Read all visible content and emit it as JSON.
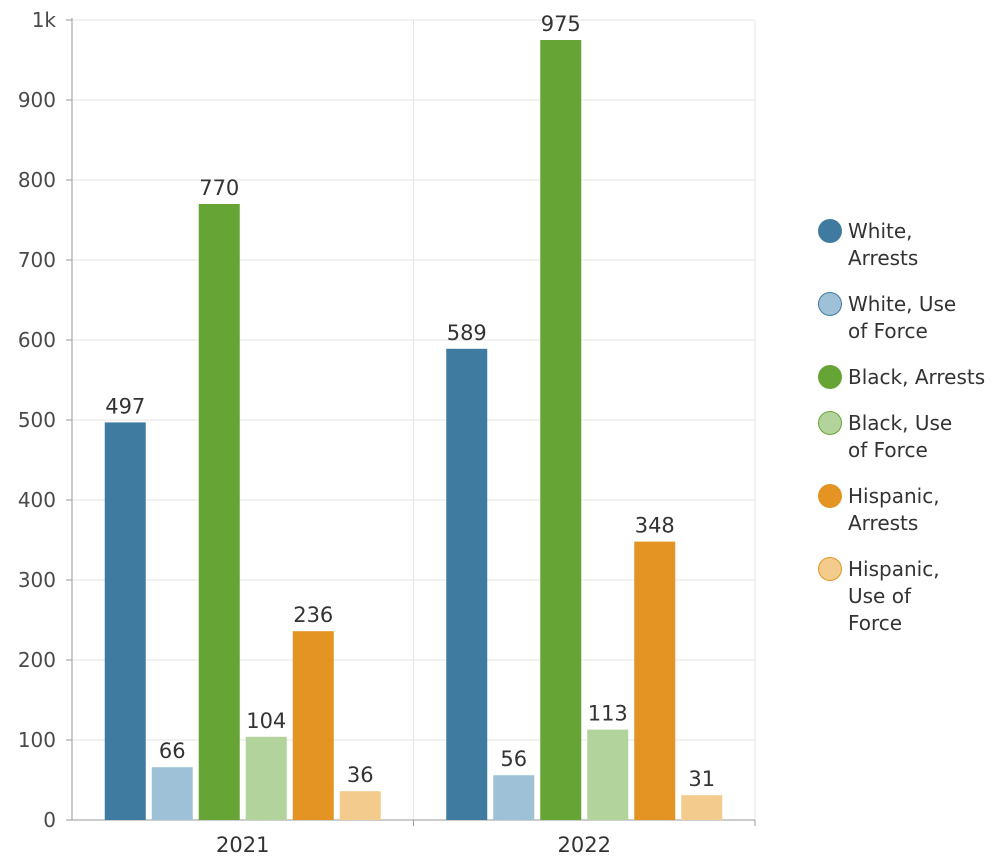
{
  "chart_data": {
    "type": "bar",
    "categories": [
      "2021",
      "2022"
    ],
    "series": [
      {
        "name": "White, Arrests",
        "color": "#3f7ba0",
        "values": [
          497,
          589
        ]
      },
      {
        "name": "White, Use of Force",
        "color": "#9ec1d8",
        "values": [
          66,
          56
        ]
      },
      {
        "name": "Black, Arrests",
        "color": "#66a535",
        "values": [
          770,
          975
        ]
      },
      {
        "name": "Black, Use of Force",
        "color": "#b2d39b",
        "values": [
          104,
          113
        ]
      },
      {
        "name": "Hispanic, Arrests",
        "color": "#e39423",
        "values": [
          236,
          348
        ]
      },
      {
        "name": "Hispanic, Use of Force",
        "color": "#f3cb8c",
        "values": [
          36,
          31
        ]
      }
    ],
    "y_ticks": [
      "0",
      "100",
      "200",
      "300",
      "400",
      "500",
      "600",
      "700",
      "800",
      "900",
      "1k"
    ],
    "ylim": [
      0,
      1000
    ],
    "grid": true,
    "legend_position": "right",
    "title": "",
    "xlabel": "",
    "ylabel": ""
  },
  "legend": {
    "items": [
      {
        "lines": [
          "White,",
          "Arrests"
        ],
        "color": "#3f7ba0"
      },
      {
        "lines": [
          "White, Use",
          "of Force"
        ],
        "color": "#9ec1d8"
      },
      {
        "lines": [
          "Black, Arrests"
        ],
        "color": "#66a535"
      },
      {
        "lines": [
          "Black, Use",
          "of Force"
        ],
        "color": "#b2d39b"
      },
      {
        "lines": [
          "Hispanic,",
          "Arrests"
        ],
        "color": "#e39423"
      },
      {
        "lines": [
          "Hispanic,",
          "Use of",
          "Force"
        ],
        "color": "#f3cb8c"
      }
    ]
  }
}
